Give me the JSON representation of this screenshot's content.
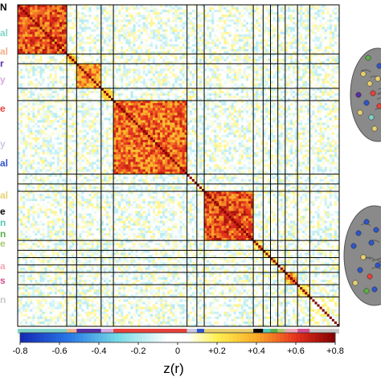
{
  "row_labels": [
    {
      "text": "N",
      "color": "#000000"
    },
    {
      "text": "al",
      "color": "#7fd3c8"
    },
    {
      "text": "al",
      "color": "#f2b08a"
    },
    {
      "text": "r",
      "color": "#5a2ea0"
    },
    {
      "text": "y",
      "color": "#d8a8e0"
    },
    {
      "text": "e",
      "color": "#e8403a"
    },
    {
      "text": "y",
      "color": "#c8c8e0"
    },
    {
      "text": "al",
      "color": "#2f55c8"
    },
    {
      "text": "al",
      "color": "#e8d070"
    },
    {
      "text": "e",
      "color": "#000000"
    },
    {
      "text": "n",
      "color": "#55c8b8"
    },
    {
      "text": "n",
      "color": "#5ab04a"
    },
    {
      "text": "e",
      "color": "#a8c870"
    },
    {
      "text": "a",
      "color": "#f0a8b8"
    },
    {
      "text": "s",
      "color": "#d05090"
    },
    {
      "text": "n",
      "color": "#c8c8c8"
    }
  ],
  "chart_data": {
    "type": "heatmap",
    "description_matrix": "correlation matrix of network nodes, block-structured",
    "networks": [
      {
        "color": "#7fd3c8",
        "size": 20
      },
      {
        "color": "#f2b08a",
        "size": 4
      },
      {
        "color": "#5a2ea0",
        "size": 10
      },
      {
        "color": "#d8a8e0",
        "size": 5
      },
      {
        "color": "#e8403a",
        "size": 30
      },
      {
        "color": "#c8c8e0",
        "size": 4
      },
      {
        "color": "#2f55c8",
        "size": 3
      },
      {
        "color": "#e8d070",
        "size": 20
      },
      {
        "color": "#000000",
        "size": 4
      },
      {
        "color": "#55c8b8",
        "size": 3
      },
      {
        "color": "#5ab04a",
        "size": 3
      },
      {
        "color": "#a8c870",
        "size": 3
      },
      {
        "color": "#f0a8b8",
        "size": 5
      },
      {
        "color": "#d05090",
        "size": 5
      },
      {
        "color": "#c8c8c8",
        "size": 12
      }
    ],
    "within_block_z": [
      0.55,
      0.25,
      0.45,
      0.2,
      0.5,
      0.15,
      0.2,
      0.55,
      0.3,
      0.25,
      0.2,
      0.2,
      0.35,
      0.3,
      0.05
    ],
    "colorbar": {
      "title": "z(r)",
      "ticks": [
        "-0.8",
        "-0.6",
        "-0.4",
        "-0.2",
        "0",
        "+0.2",
        "+0.4",
        "+0.6",
        "+0.8"
      ],
      "range": [
        -0.8,
        0.8
      ]
    }
  }
}
